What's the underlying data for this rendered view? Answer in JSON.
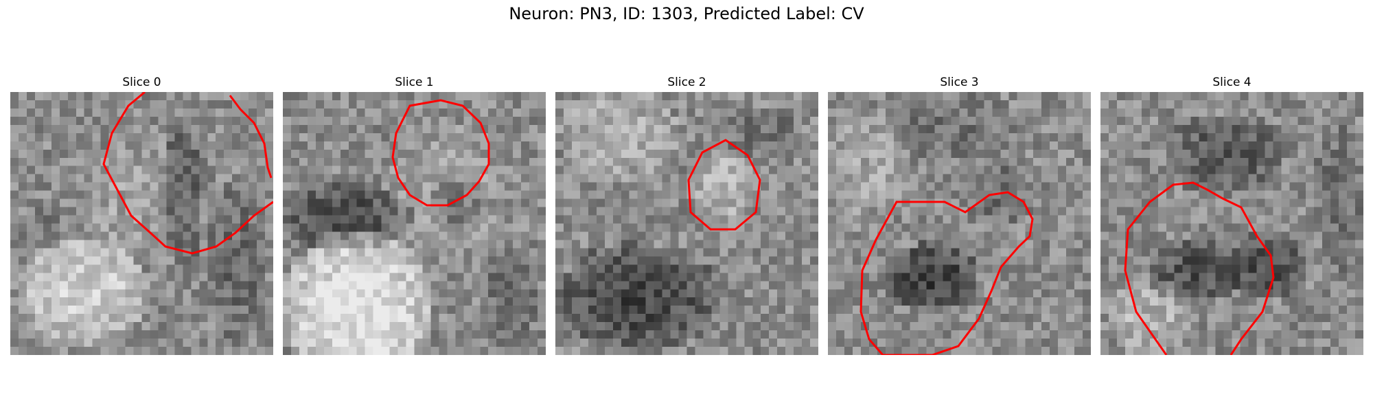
{
  "figure": {
    "title": "Neuron: PN3, ID: 1303, Predicted Label: CV"
  },
  "panels": [
    {
      "title": "Slice 0"
    },
    {
      "title": "Slice 1"
    },
    {
      "title": "Slice 2"
    },
    {
      "title": "Slice 3"
    },
    {
      "title": "Slice 4"
    }
  ],
  "style": {
    "contour_color": "#ff0000",
    "colormap": "gray"
  }
}
